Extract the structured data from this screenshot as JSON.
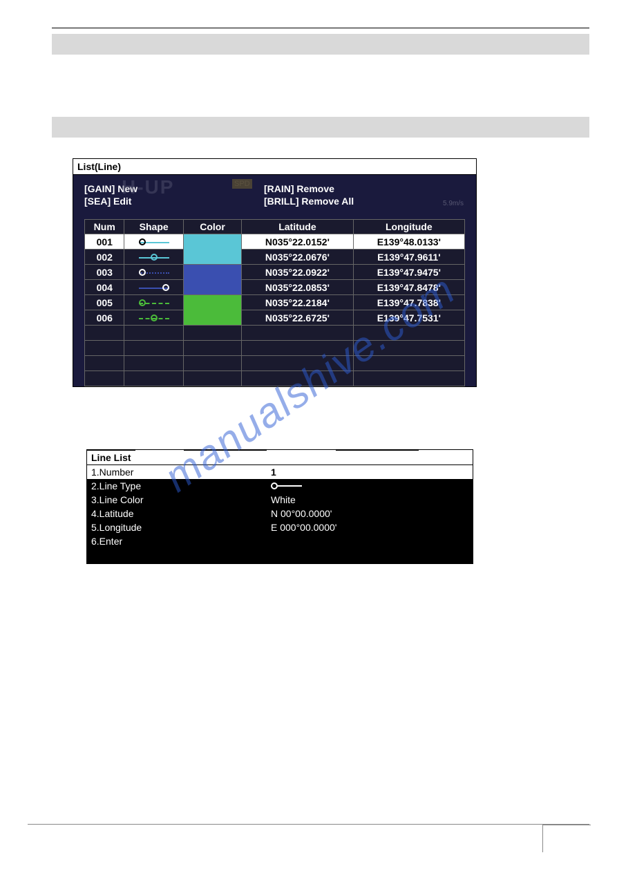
{
  "watermark": "manualshive.com",
  "screen1": {
    "title": "List(Line)",
    "hud": {
      "gain": "[GAIN] New",
      "rain": "[RAIN] Remove",
      "sea": "[SEA] Edit",
      "brill": "[BRILL] Remove All",
      "bg_hup": "H-UP",
      "bg_spd": "SPD",
      "bg_right": "5.9m/s"
    },
    "columns": [
      "Num",
      "Shape",
      "Color",
      "Latitude",
      "Longitude"
    ],
    "rows": [
      {
        "num": "001",
        "shape": {
          "node_pos": "left",
          "node_color": "#000",
          "line_color": "#5ac6d6",
          "dash": "solid"
        },
        "color": "#5ac6d6",
        "lat": "N035°22.0152'",
        "lon": "E139°48.0133'",
        "selected": true
      },
      {
        "num": "002",
        "shape": {
          "node_pos": "mid",
          "node_color": "#5ac6d6",
          "line_color": "#5ac6d6",
          "dash": "solid"
        },
        "color": "#5ac6d6",
        "lat": "N035°22.0676'",
        "lon": "E139°47.9611'",
        "selected": false
      },
      {
        "num": "003",
        "shape": {
          "node_pos": "left",
          "node_color": "#fff",
          "line_color": "#3a4fb0",
          "dash": "dotted"
        },
        "color": "#3a4fb0",
        "lat": "N035°22.0922'",
        "lon": "E139°47.9475'",
        "selected": false
      },
      {
        "num": "004",
        "shape": {
          "node_pos": "right",
          "node_color": "#fff",
          "line_color": "#3a4fb0",
          "dash": "solid"
        },
        "color": "#3a4fb0",
        "lat": "N035°22.0853'",
        "lon": "E139°47.8478'",
        "selected": false
      },
      {
        "num": "005",
        "shape": {
          "node_pos": "left",
          "node_color": "#4bbb3a",
          "line_color": "#4bbb3a",
          "dash": "dashed"
        },
        "color": "#4bbb3a",
        "lat": "N035°22.2184'",
        "lon": "E139°47.7838'",
        "selected": false
      },
      {
        "num": "006",
        "shape": {
          "node_pos": "mid",
          "node_color": "#4bbb3a",
          "line_color": "#4bbb3a",
          "dash": "dashed"
        },
        "color": "#4bbb3a",
        "lat": "N035°22.6725'",
        "lon": "E139°47.7531'",
        "selected": false
      }
    ],
    "empty_rows": 4
  },
  "screen2": {
    "title": "Line List",
    "items": [
      {
        "label": "1.Number",
        "value": "1",
        "selected": true
      },
      {
        "label": "2.Line Type",
        "value_type": "linetype"
      },
      {
        "label": "3.Line Color",
        "value": "White"
      },
      {
        "label": "4.Latitude",
        "value": "N 00°00.0000'"
      },
      {
        "label": "5.Longitude",
        "value": "E 000°00.0000'"
      },
      {
        "label": "6.Enter",
        "value": ""
      }
    ]
  }
}
